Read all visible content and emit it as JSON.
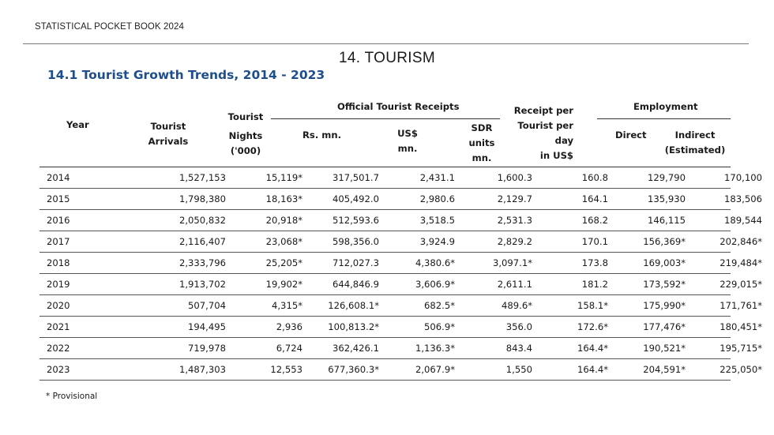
{
  "header": {
    "running_title": "STATISTICAL POCKET BOOK 2024",
    "chapter_title": "14. TOURISM",
    "section_title": "14.1 Tourist Growth Trends, 2014 - 2023"
  },
  "table": {
    "group_headers": {
      "official_receipts": "Official Tourist Receipts",
      "employment": "Employment"
    },
    "columns": {
      "year": "Year",
      "arrivals": [
        "Tourist",
        "Arrivals"
      ],
      "nights": [
        "Tourist",
        "Nights",
        "('000)"
      ],
      "rs": "Rs. mn.",
      "usd": [
        "US$",
        "mn."
      ],
      "sdr": [
        "SDR",
        "units",
        "mn."
      ],
      "receipt_per": [
        "Receipt per",
        "Tourist per",
        "day",
        "in US$"
      ],
      "direct": "Direct",
      "indirect": [
        "Indirect",
        "(Estimated)"
      ]
    },
    "rows": [
      {
        "year": "2014",
        "arrivals": "1,527,153",
        "nights": "15,119*",
        "rs": "317,501.7",
        "usd": "2,431.1",
        "sdr": "1,600.3",
        "per_day": "160.8",
        "direct": "129,790",
        "indirect": "170,100"
      },
      {
        "year": "2015",
        "arrivals": "1,798,380",
        "nights": "18,163*",
        "rs": "405,492.0",
        "usd": "2,980.6",
        "sdr": "2,129.7",
        "per_day": "164.1",
        "direct": "135,930",
        "indirect": "183,506"
      },
      {
        "year": "2016",
        "arrivals": "2,050,832",
        "nights": "20,918*",
        "rs": "512,593.6",
        "usd": "3,518.5",
        "sdr": "2,531.3",
        "per_day": "168.2",
        "direct": "146,115",
        "indirect": "189,544"
      },
      {
        "year": "2017",
        "arrivals": "2,116,407",
        "nights": "23,068*",
        "rs": "598,356.0",
        "usd": "3,924.9",
        "sdr": "2,829.2",
        "per_day": "170.1",
        "direct": "156,369*",
        "indirect": "202,846*"
      },
      {
        "year": "2018",
        "arrivals": "2,333,796",
        "nights": "25,205*",
        "rs": "712,027.3",
        "usd": "4,380.6*",
        "sdr": "3,097.1*",
        "per_day": "173.8",
        "direct": "169,003*",
        "indirect": "219,484*"
      },
      {
        "year": "2019",
        "arrivals": "1,913,702",
        "nights": "19,902*",
        "rs": "644,846.9",
        "usd": "3,606.9*",
        "sdr": "2,611.1",
        "per_day": "181.2",
        "direct": "173,592*",
        "indirect": "229,015*"
      },
      {
        "year": "2020",
        "arrivals": "507,704",
        "nights": "4,315*",
        "rs": "126,608.1*",
        "usd": "682.5*",
        "sdr": "489.6*",
        "per_day": "158.1*",
        "direct": "175,990*",
        "indirect": "171,761*"
      },
      {
        "year": "2021",
        "arrivals": "194,495",
        "nights": "2,936",
        "rs": "100,813.2*",
        "usd": "506.9*",
        "sdr": "356.0",
        "per_day": "172.6*",
        "direct": "177,476*",
        "indirect": "180,451*"
      },
      {
        "year": "2022",
        "arrivals": "719,978",
        "nights": "6,724",
        "rs": "362,426.1",
        "usd": "1,136.3*",
        "sdr": "843.4",
        "per_day": "164.4*",
        "direct": "190,521*",
        "indirect": "195,715*"
      },
      {
        "year": "2023",
        "arrivals": "1,487,303",
        "nights": "12,553",
        "rs": "677,360.3*",
        "usd": "2,067.9*",
        "sdr": "1,550",
        "per_day": "164.4*",
        "direct": "204,591*",
        "indirect": "225,050*"
      }
    ]
  },
  "footnote": "* Provisional"
}
